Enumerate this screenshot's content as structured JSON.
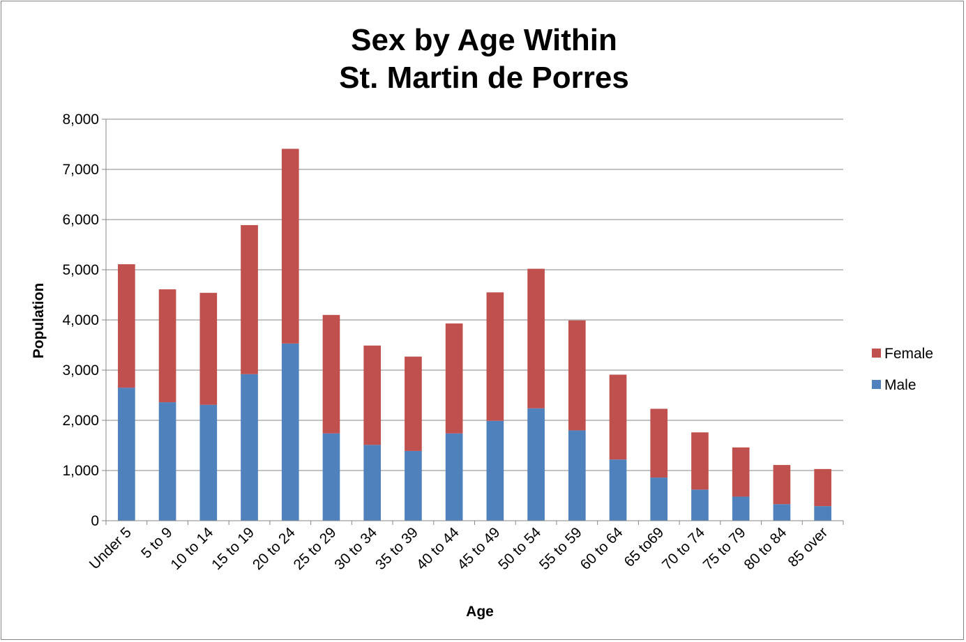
{
  "chart_data": {
    "type": "bar",
    "stacked": true,
    "title_line1": "Sex by Age Within",
    "title_line2": "St. Martin de Porres",
    "xlabel": "Age",
    "ylabel": "Population",
    "ylim": [
      0,
      8000
    ],
    "y_ticks": [
      "0",
      "1,000",
      "2,000",
      "3,000",
      "4,000",
      "5,000",
      "6,000",
      "7,000",
      "8,000"
    ],
    "grid": true,
    "legend_position": "right",
    "categories": [
      "Under 5",
      "5 to 9",
      "10 to 14",
      "15 to 19",
      "20 to 24",
      "25 to 29",
      "30 to 34",
      "35 to 39",
      "40 to 44",
      "45 to 49",
      "50 to 54",
      "55 to 59",
      "60 to 64",
      "65 to69",
      "70 to 74",
      "75 to 79",
      "80 to 84",
      "85 over"
    ],
    "series": [
      {
        "name": "Male",
        "color": "#4f81bd",
        "values": [
          2650,
          2360,
          2310,
          2920,
          3530,
          1740,
          1510,
          1390,
          1740,
          1990,
          2240,
          1800,
          1220,
          860,
          620,
          480,
          330,
          290
        ]
      },
      {
        "name": "Female",
        "color": "#c0504d",
        "values": [
          2460,
          2250,
          2230,
          2970,
          3880,
          2360,
          1980,
          1880,
          2190,
          2560,
          2780,
          2190,
          1690,
          1370,
          1140,
          980,
          780,
          740
        ]
      }
    ],
    "legend_order": [
      "Female",
      "Male"
    ]
  }
}
